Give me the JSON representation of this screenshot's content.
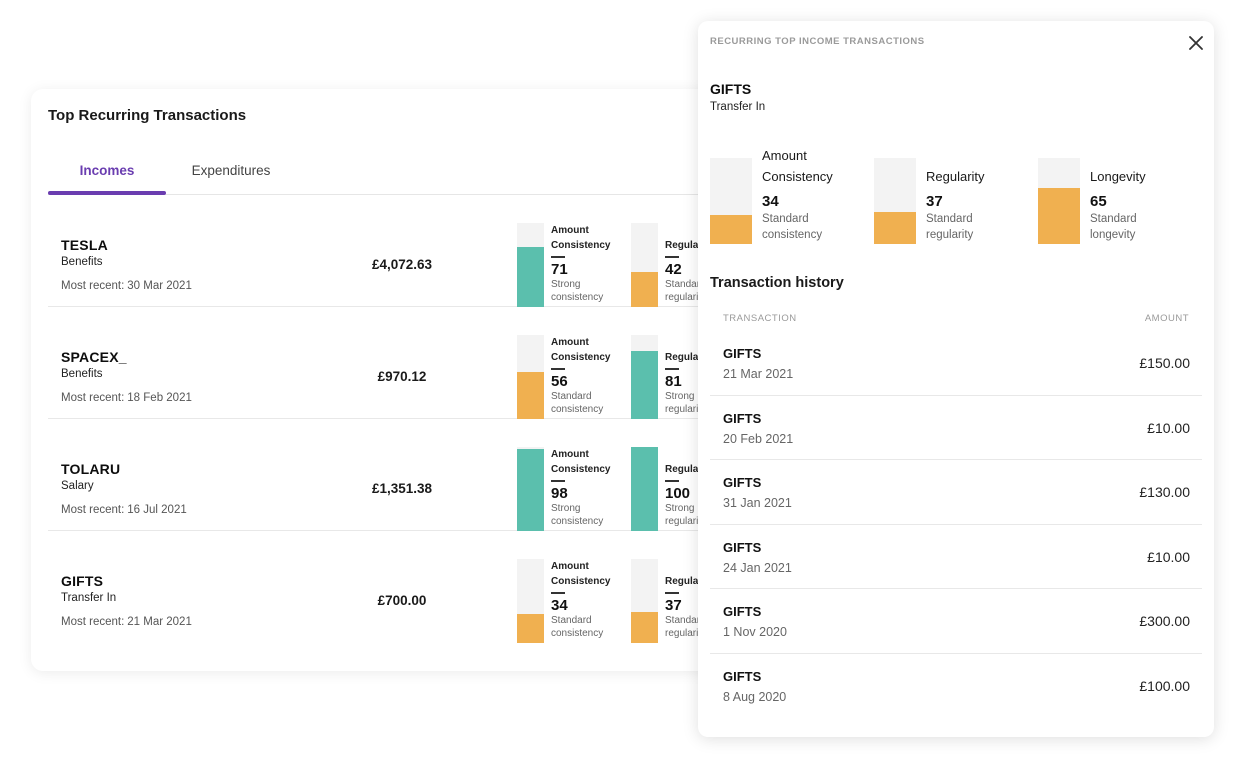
{
  "main": {
    "title": "Top Recurring Transactions",
    "tabs": [
      {
        "label": "Incomes",
        "active": true
      },
      {
        "label": "Expenditures",
        "active": false
      }
    ],
    "recent_label": "Most recent:",
    "rows": [
      {
        "name": "TESLA",
        "category": "Benefits",
        "recent": "30 Mar 2021",
        "amount": "£4,072.63",
        "metrics": [
          {
            "label1": "Amount",
            "label2": "Consistency",
            "score": "71",
            "desc1": "Strong",
            "desc2": "consistency",
            "level": 0.71,
            "color": "#5bbfad"
          },
          {
            "label1": "Regular",
            "score": "42",
            "desc1": "Standar",
            "desc2": "regulari",
            "level": 0.42,
            "color": "#f0b050"
          }
        ]
      },
      {
        "name": "SPACEX_",
        "category": "Benefits",
        "recent": "18 Feb 2021",
        "amount": "£970.12",
        "metrics": [
          {
            "label1": "Amount",
            "label2": "Consistency",
            "score": "56",
            "desc1": "Standard",
            "desc2": "consistency",
            "level": 0.56,
            "color": "#f0b050"
          },
          {
            "label1": "Regular",
            "score": "81",
            "desc1": "Strong",
            "desc2": "regulari",
            "level": 0.81,
            "color": "#5bbfad"
          }
        ]
      },
      {
        "name": "TOLARU",
        "category": "Salary",
        "recent": "16 Jul 2021",
        "amount": "£1,351.38",
        "metrics": [
          {
            "label1": "Amount",
            "label2": "Consistency",
            "score": "98",
            "desc1": "Strong",
            "desc2": "consistency",
            "level": 0.98,
            "color": "#5bbfad"
          },
          {
            "label1": "Regular",
            "score": "100",
            "desc1": "Strong",
            "desc2": "regulari",
            "level": 1.0,
            "color": "#5bbfad"
          }
        ]
      },
      {
        "name": "GIFTS",
        "category": "Transfer In",
        "recent": "21 Mar 2021",
        "amount": "£700.00",
        "metrics": [
          {
            "label1": "Amount",
            "label2": "Consistency",
            "score": "34",
            "desc1": "Standard",
            "desc2": "consistency",
            "level": 0.34,
            "color": "#f0b050"
          },
          {
            "label1": "Regular",
            "score": "37",
            "desc1": "Standar",
            "desc2": "regulari",
            "level": 0.37,
            "color": "#f0b050"
          }
        ]
      }
    ]
  },
  "panel": {
    "kicker": "RECURRING TOP INCOME TRANSACTIONS",
    "name": "GIFTS",
    "category": "Transfer In",
    "metrics": [
      {
        "label1": "Amount",
        "label2": "Consistency",
        "score": "34",
        "desc1": "Standard",
        "desc2": "consistency",
        "level": 0.34,
        "color": "#f0b050"
      },
      {
        "label1": "Regularity",
        "label2": "",
        "score": "37",
        "desc1": "Standard",
        "desc2": "regularity",
        "level": 0.37,
        "color": "#f0b050"
      },
      {
        "label1": "Longevity",
        "label2": "",
        "score": "65",
        "desc1": "Standard",
        "desc2": "longevity",
        "level": 0.65,
        "color": "#f0b050"
      }
    ],
    "history_title": "Transaction history",
    "history_head": {
      "transaction": "TRANSACTION",
      "amount": "AMOUNT"
    },
    "history": [
      {
        "name": "GIFTS",
        "date": "21 Mar 2021",
        "amount": "£150.00"
      },
      {
        "name": "GIFTS",
        "date": "20 Feb 2021",
        "amount": "£10.00"
      },
      {
        "name": "GIFTS",
        "date": "31 Jan 2021",
        "amount": "£130.00"
      },
      {
        "name": "GIFTS",
        "date": "24 Jan 2021",
        "amount": "£10.00"
      },
      {
        "name": "GIFTS",
        "date": "1 Nov 2020",
        "amount": "£300.00"
      },
      {
        "name": "GIFTS",
        "date": "8 Aug 2020",
        "amount": "£100.00"
      }
    ],
    "close_icon": "close-icon"
  }
}
